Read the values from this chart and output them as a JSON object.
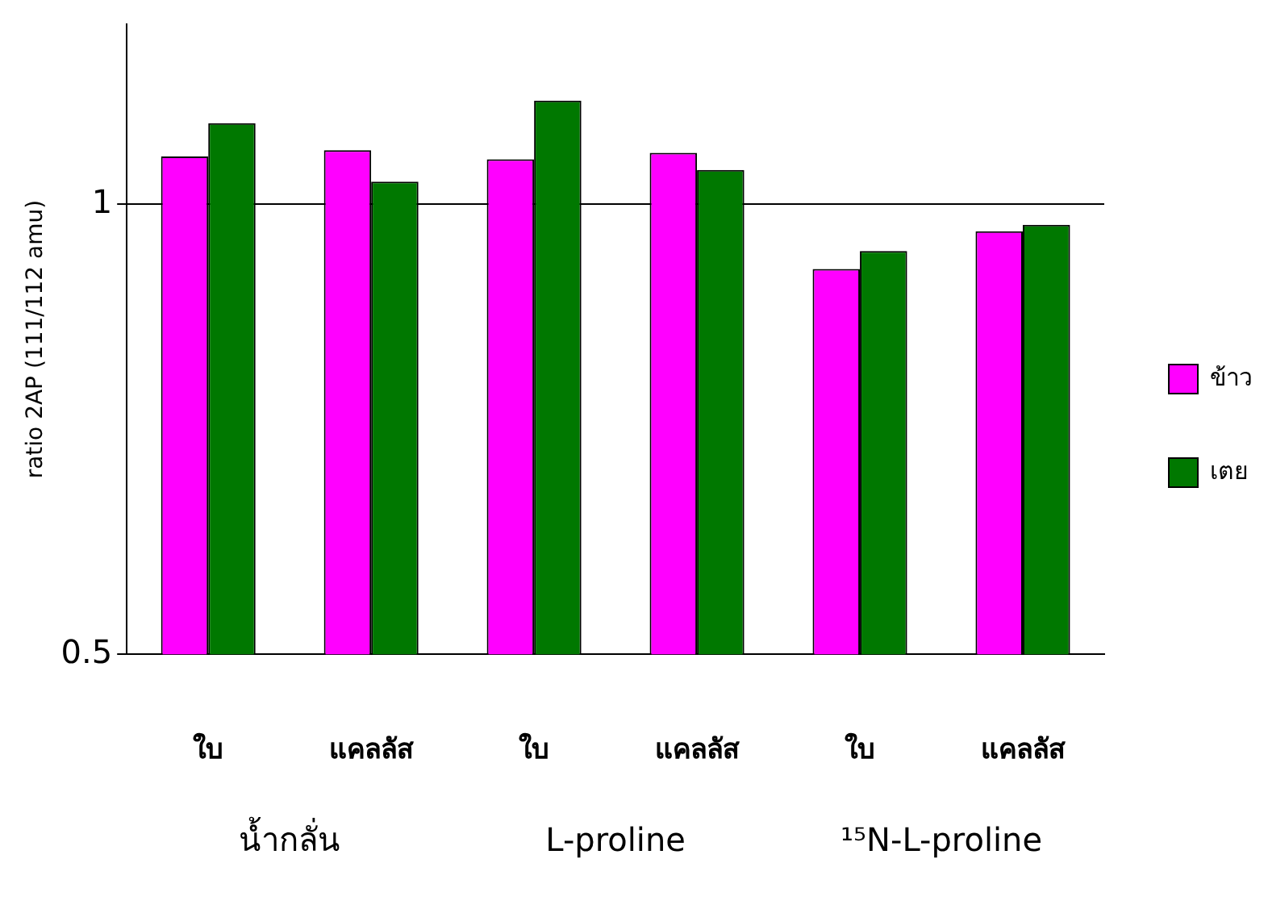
{
  "chart_data": {
    "type": "bar",
    "ylabel": "ratio 2AP (111/112 amu)",
    "categories": [
      "ใบ",
      "แคลลัส",
      "ใบ",
      "แคลลัส",
      "ใบ",
      "แคลลัส"
    ],
    "series": [
      {
        "name": "ข้าว",
        "color": "#ff00ff",
        "values": [
          1.053,
          1.06,
          1.05,
          1.057,
          0.928,
          0.97
        ]
      },
      {
        "name": "เตย",
        "color": "#007800",
        "values": [
          1.09,
          1.025,
          1.115,
          1.038,
          0.948,
          0.977
        ]
      }
    ],
    "ylim": [
      0.5,
      1.2
    ],
    "yticks": [
      0.5,
      1
    ],
    "grid": "y",
    "legend": "right",
    "annotations": [
      "น้ำกลั่น",
      "L-proline",
      "¹⁵N-L-proline"
    ]
  }
}
